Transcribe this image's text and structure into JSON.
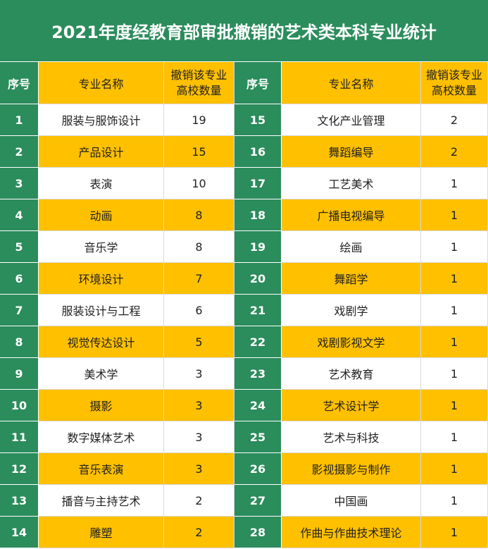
{
  "title": "2021年度经教育部审批撤销的艺术类本科专业统计",
  "table": {
    "headers": [
      "序号",
      "专业名称",
      "撤销该专业高校数量",
      "序号",
      "专业名称",
      "撤销该专业高校数量"
    ],
    "rows": [
      [
        1,
        "服装与服饰设计",
        19,
        15,
        "文化产业管理",
        2
      ],
      [
        2,
        "产品设计",
        15,
        16,
        "舞蹈编导",
        2
      ],
      [
        3,
        "表演",
        10,
        17,
        "工艺美术",
        1
      ],
      [
        4,
        "动画",
        8,
        18,
        "广播电视编导",
        1
      ],
      [
        5,
        "音乐学",
        8,
        19,
        "绘画",
        1
      ],
      [
        6,
        "环境设计",
        7,
        20,
        "舞蹈学",
        1
      ],
      [
        7,
        "服装设计与工程",
        6,
        21,
        "戏剧学",
        1
      ],
      [
        8,
        "视觉传达设计",
        5,
        22,
        "戏剧影视文学",
        1
      ],
      [
        9,
        "美术学",
        3,
        23,
        "艺术教育",
        1
      ],
      [
        10,
        "摄影",
        3,
        24,
        "艺术设计学",
        1
      ],
      [
        11,
        "数字媒体艺术",
        3,
        25,
        "艺术与科技",
        1
      ],
      [
        12,
        "音乐表演",
        3,
        26,
        "影视摄影与制作",
        1
      ],
      [
        13,
        "播音与主持艺术",
        2,
        27,
        "中国画",
        1
      ],
      [
        14,
        "雕塑",
        2,
        28,
        "作曲与作曲技术理论",
        1
      ]
    ]
  }
}
